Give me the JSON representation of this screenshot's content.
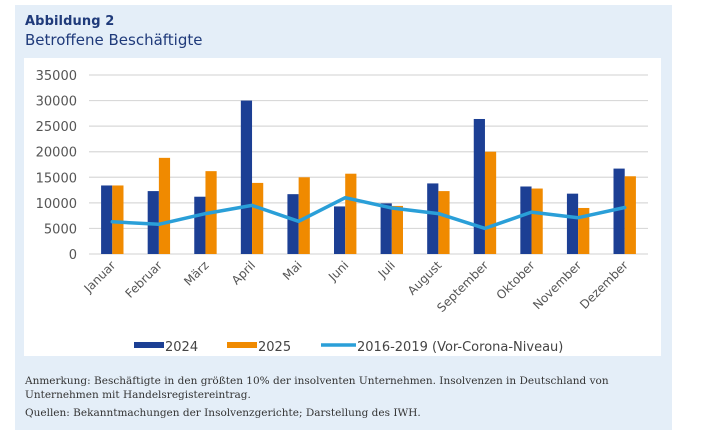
{
  "figure": {
    "label": "Abbildung 2",
    "title": "Betroffene Beschäftigte"
  },
  "notes": {
    "anmerkung": "Anmerkung: Beschäftigte in den größten 10% der insolventen Unternehmen. Insolvenzen in Deutschland von Unternehmen mit Handelsregistereintrag.",
    "quellen": "Quellen: Bekanntmachungen der Insolvenzgerichte; Darstellung des IWH."
  },
  "colors": {
    "series_2024": "#1c3f94",
    "series_2025": "#f08a00",
    "series_line": "#2a9fd8",
    "grid": "#d9d9d9",
    "panel_bg": "#e4eef8",
    "title": "#1f3a7a"
  },
  "chart_data": {
    "type": "bar",
    "title": "Betroffene Beschäftigte",
    "xlabel": "",
    "ylabel": "",
    "ylim": [
      0,
      35000
    ],
    "yticks": [
      0,
      5000,
      10000,
      15000,
      20000,
      25000,
      30000,
      35000
    ],
    "ytick_labels": [
      "0",
      "5000",
      "10000",
      "15000",
      "20000",
      "25000",
      "30000",
      "35000"
    ],
    "grid": true,
    "legend_position": "bottom",
    "categories": [
      "Januar",
      "Februar",
      "März",
      "April",
      "Mai",
      "Juni",
      "Juli",
      "August",
      "September",
      "Oktober",
      "November",
      "Dezember"
    ],
    "series": [
      {
        "name": "2024",
        "type": "bar",
        "color": "#1c3f94",
        "values": [
          13400,
          12300,
          11200,
          30000,
          11700,
          9300,
          9900,
          13800,
          26400,
          13200,
          11800,
          16700
        ]
      },
      {
        "name": "2025",
        "type": "bar",
        "color": "#f08a00",
        "values": [
          13400,
          18800,
          16200,
          13900,
          15000,
          15700,
          9400,
          12300,
          20000,
          12800,
          9000,
          15200
        ]
      },
      {
        "name": "2016-2019 (Vor-Corona-Niveau)",
        "type": "line",
        "color": "#2a9fd8",
        "values": [
          6300,
          5800,
          7900,
          9500,
          6400,
          11000,
          9000,
          7900,
          5000,
          8200,
          7100,
          9100
        ]
      }
    ]
  }
}
